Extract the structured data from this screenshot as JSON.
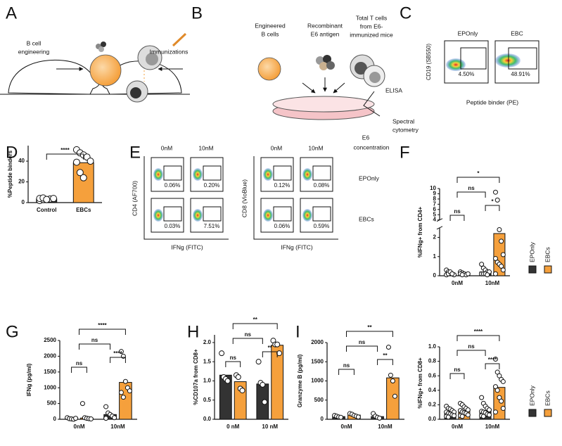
{
  "panels": [
    "A",
    "B",
    "C",
    "D",
    "E",
    "F",
    "G",
    "H",
    "I"
  ],
  "figure_a": {
    "left_label": [
      "B cell",
      "engineering"
    ],
    "right_label": "Immunizations"
  },
  "figure_b": {
    "cells": [
      [
        "Engineered",
        "B cells"
      ],
      [
        "Recombinant",
        "E6 antigen"
      ],
      [
        "Total T cells",
        "from E6-",
        "immunized mice"
      ]
    ],
    "elisa": "ELISA",
    "cytometry": [
      "Spectral",
      "cytometry"
    ]
  },
  "figure_c": {
    "columns": [
      "EPOnly",
      "EBC"
    ],
    "gates": [
      "4.50%",
      "48.91%"
    ],
    "y_label": "CD19 (SB550)",
    "x_label": "Peptide binder (PE)"
  },
  "figure_e": {
    "columns": [
      "0nM",
      "10nM"
    ],
    "concentration": [
      "E6",
      "concentration"
    ],
    "rows": [
      "EPOnly",
      "EBCs"
    ],
    "cd4": {
      "y_label": "CD4 (AF700)",
      "x_label": "IFNg (FITC)",
      "gates": [
        "0.06%",
        "0.20%",
        "0.03%",
        "7.51%"
      ]
    },
    "cd8": {
      "y_label": "CD8 (VioBlue)",
      "x_label": "IFNg (FITC)",
      "gates": [
        "0.12%",
        "0.08%",
        "0.06%",
        "0.59%"
      ]
    }
  },
  "chart_data": [
    {
      "type": "bar",
      "categories": [
        "Control",
        "EBCs"
      ],
      "values": [
        3.5,
        38.5
      ],
      "colors": [
        "#333333",
        "#f5a03c"
      ],
      "points": [
        [
          2,
          3,
          3,
          3.5,
          4,
          4,
          4.5,
          3
        ],
        [
          51,
          48,
          46,
          44,
          40,
          39,
          29,
          24
        ]
      ],
      "ylabel": "%Peptide binders",
      "ylim": [
        0,
        55
      ],
      "yticks": [
        0,
        20,
        40
      ],
      "significance": [
        "****"
      ]
    },
    {
      "type": "grouped_bar",
      "categories": [
        "0nM",
        "10nM"
      ],
      "ylabel": "%IFNg+ from CD4+",
      "ylim": [
        0,
        10
      ],
      "ybreak": [
        2.5,
        4
      ],
      "yticks": [
        0,
        1,
        2,
        4,
        5,
        6,
        7,
        8,
        9,
        10
      ],
      "series": [
        {
          "name": "EPOnly",
          "color": "#333333",
          "values": [
            0.1,
            0.2
          ],
          "points": [
            [
              0.3,
              0.2,
              0.15,
              0.1,
              0.05,
              0.05,
              0.1,
              0.2,
              0.1
            ],
            [
              0.6,
              0.4,
              0.3,
              0.2,
              0.2,
              0.1,
              0.1,
              0.1,
              0.05
            ]
          ]
        },
        {
          "name": "EBCs",
          "color": "#f5a03c",
          "values": [
            0.1,
            2.2
          ],
          "points": [
            [
              0.2,
              0.15,
              0.1,
              0.05,
              0.1,
              0.1,
              0.05
            ],
            [
              9.3,
              7.8,
              2.4,
              1.8,
              1.1,
              0.9,
              0.7,
              0.6,
              0.5,
              0.3,
              0.1
            ]
          ]
        }
      ],
      "significance": [
        "ns",
        "*",
        "ns",
        "*"
      ],
      "legend": true
    },
    {
      "type": "grouped_bar",
      "categories": [
        "0nM",
        "10nM"
      ],
      "ylabel": "IFNg (pg/ml)",
      "ylim": [
        0,
        2500
      ],
      "yticks": [
        0,
        500,
        1000,
        1500,
        2000,
        2500
      ],
      "series": [
        {
          "color": "#333333",
          "values": [
            30,
            150
          ],
          "points": [
            [
              50,
              20,
              10,
              0,
              30
            ],
            [
              400,
              200,
              150,
              100,
              50,
              30
            ]
          ]
        },
        {
          "color": "#f5a03c",
          "values": [
            40,
            1170
          ],
          "points": [
            [
              500,
              50,
              30,
              20,
              10
            ],
            [
              2150,
              2000,
              1200,
              1000,
              900,
              850,
              700
            ]
          ]
        }
      ],
      "significance": [
        "ns",
        "****",
        "ns",
        "****"
      ]
    },
    {
      "type": "grouped_bar",
      "categories": [
        "0 nM",
        "10 nM"
      ],
      "ylabel": "%CD107a from CD8+",
      "ylim": [
        0,
        2.2
      ],
      "yticks": [
        {
          "value": 0,
          "label": "0.0"
        },
        0.5,
        {
          "value": 1,
          "label": "1.0"
        },
        1.5,
        {
          "value": 2,
          "label": "2.0"
        }
      ],
      "series": [
        {
          "color": "#333333",
          "values": [
            1.15,
            0.92
          ],
          "points": [
            [
              1.72,
              1.1,
              1.05,
              1.0
            ],
            [
              1.5,
              0.95,
              0.9,
              0.45
            ]
          ]
        },
        {
          "color": "#f5a03c",
          "values": [
            0.98,
            1.93
          ],
          "points": [
            [
              1.15,
              1.1,
              0.8,
              0.75
            ],
            [
              2.05,
              1.95,
              1.95,
              1.72
            ]
          ]
        }
      ],
      "significance": [
        "ns",
        "**",
        "ns",
        "**"
      ]
    },
    {
      "type": "grouped_bar",
      "categories": [
        "0nM",
        "10nM"
      ],
      "ylabel": "Granzyme B (pg/ml)",
      "ylim": [
        0,
        2000
      ],
      "yticks": [
        0,
        500,
        1000,
        1500,
        2000
      ],
      "series": [
        {
          "color": "#333333",
          "values": [
            70,
            70
          ],
          "points": [
            [
              100,
              80,
              60,
              50
            ],
            [
              150,
              80,
              50,
              30
            ]
          ]
        },
        {
          "color": "#f5a03c",
          "values": [
            110,
            1080
          ],
          "points": [
            [
              150,
              130,
              100,
              80,
              60
            ],
            [
              1880,
              1150,
              1000,
              600
            ]
          ]
        }
      ],
      "significance": [
        "ns",
        "**",
        "ns",
        "**"
      ]
    },
    {
      "type": "grouped_bar",
      "categories": [
        "0nM",
        "10nM"
      ],
      "ylabel": "%IFNg+ from CD8+",
      "ylim": [
        0,
        1
      ],
      "yticks": [
        {
          "value": 0,
          "label": "0.0"
        },
        0.2,
        0.4,
        0.6,
        0.8,
        {
          "value": 1,
          "label": "1.0"
        }
      ],
      "series": [
        {
          "name": "EPOnly",
          "color": "#333333",
          "values": [
            0.1,
            0.12
          ],
          "points": [
            [
              0.18,
              0.15,
              0.14,
              0.12,
              0.1,
              0.1,
              0.08,
              0.07,
              0.06,
              0.05,
              0.04,
              0.03
            ],
            [
              0.3,
              0.22,
              0.18,
              0.15,
              0.13,
              0.11,
              0.1,
              0.09,
              0.07,
              0.06,
              0.05,
              0.04
            ]
          ]
        },
        {
          "name": "EBCs",
          "color": "#f5a03c",
          "values": [
            0.12,
            0.44
          ],
          "points": [
            [
              0.22,
              0.2,
              0.17,
              0.15,
              0.13,
              0.12,
              0.1,
              0.09,
              0.08,
              0.06,
              0.05,
              0.04
            ],
            [
              0.83,
              0.65,
              0.6,
              0.55,
              0.52,
              0.45,
              0.4,
              0.3,
              0.25,
              0.15,
              0.1
            ]
          ]
        }
      ],
      "significance": [
        "ns",
        "****",
        "ns",
        "****"
      ],
      "legend": true
    }
  ]
}
